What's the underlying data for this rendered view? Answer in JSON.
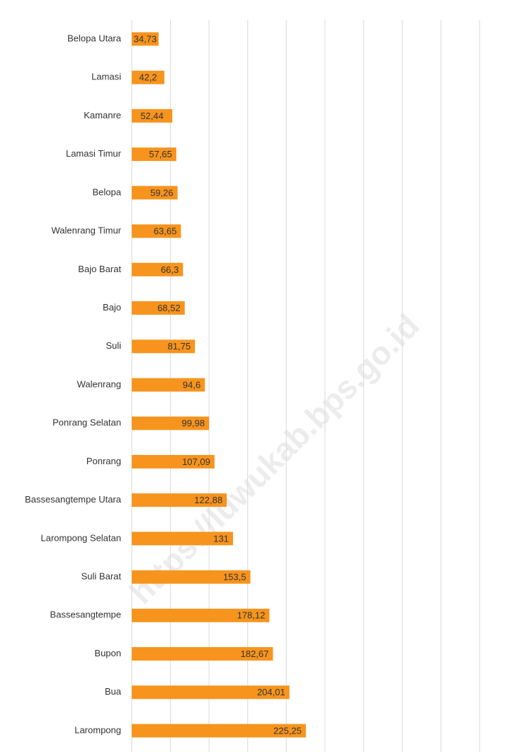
{
  "chart_data": {
    "type": "bar",
    "orientation": "horizontal",
    "categories": [
      "Belopa Utara",
      "Lamasi",
      "Kamanre",
      "Lamasi Timur",
      "Belopa",
      "Walenrang Timur",
      "Bajo Barat",
      "Bajo",
      "Suli",
      "Walenrang",
      "Ponrang Selatan",
      "Ponrang",
      "Bassesangtempe Utara",
      "Larompong Selatan",
      "Suli Barat",
      "Bassesangtempe",
      "Bupon",
      "Bua",
      "Larompong"
    ],
    "values": [
      34.73,
      42.2,
      52.44,
      57.65,
      59.26,
      63.65,
      66.3,
      68.52,
      81.75,
      94.6,
      99.98,
      107.09,
      122.88,
      131,
      153.5,
      178.12,
      182.67,
      204.01,
      225.25
    ],
    "value_labels": [
      "34,73",
      "42,2",
      "52,44",
      "57,65",
      "59,26",
      "63,65",
      "66,3",
      "68,52",
      "81,75",
      "94,6",
      "99,98",
      "107,09",
      "122,88",
      "131",
      "153,5",
      "178,12",
      "182,67",
      "204,01",
      "225,25"
    ],
    "color": "#f7941d",
    "xlim": [
      0,
      450
    ],
    "xticks": [
      0,
      50,
      100,
      150,
      200,
      250,
      300,
      350,
      400,
      450
    ],
    "grid": true,
    "watermark": "https://luwukab.bps.go.id"
  }
}
